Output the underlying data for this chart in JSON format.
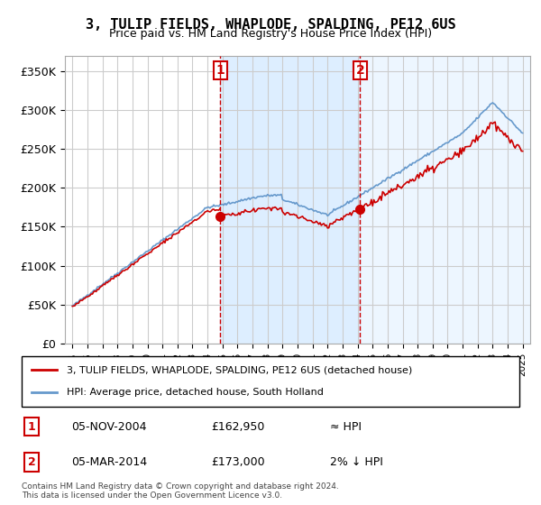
{
  "title": "3, TULIP FIELDS, WHAPLODE, SPALDING, PE12 6US",
  "subtitle": "Price paid vs. HM Land Registry's House Price Index (HPI)",
  "legend_line1": "3, TULIP FIELDS, WHAPLODE, SPALDING, PE12 6US (detached house)",
  "legend_line2": "HPI: Average price, detached house, South Holland",
  "table_rows": [
    {
      "num": "1",
      "date": "05-NOV-2004",
      "price": "£162,950",
      "relation": "≈ HPI"
    },
    {
      "num": "2",
      "date": "05-MAR-2014",
      "price": "£173,000",
      "relation": "2% ↓ HPI"
    }
  ],
  "footnote": "Contains HM Land Registry data © Crown copyright and database right 2024.\nThis data is licensed under the Open Government Licence v3.0.",
  "sale1_year": 2004.85,
  "sale1_price": 162950,
  "sale2_year": 2014.17,
  "sale2_price": 173000,
  "ylim": [
    0,
    370000
  ],
  "xlim_start": 1994.5,
  "xlim_end": 2025.5,
  "price_line_color": "#cc0000",
  "hpi_line_color": "#6699cc",
  "grid_color": "#cccccc",
  "shade_color": "#ddeeff",
  "vline_color": "#cc0000",
  "background_color": "#ffffff"
}
